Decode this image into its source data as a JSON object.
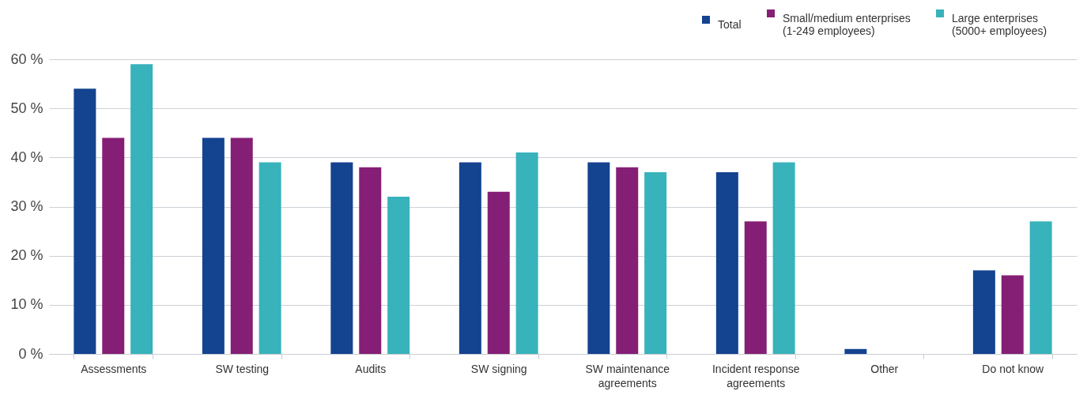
{
  "chart_data": {
    "type": "bar",
    "categories": [
      "Assessments",
      "SW testing",
      "Audits",
      "SW signing",
      "SW maintenance agreements",
      "Incident response agreements",
      "Other",
      "Do not know"
    ],
    "series": [
      {
        "name": "Total",
        "color": "#14438f",
        "values": [
          54,
          44,
          39,
          39,
          39,
          37,
          1,
          17
        ]
      },
      {
        "name": "Small/medium enterprises (1-249 employees)",
        "color": "#851f75",
        "values": [
          44,
          44,
          38,
          33,
          38,
          27,
          null,
          16
        ]
      },
      {
        "name": "Large enterprises (5000+ employees)",
        "color": "#38b2bb",
        "values": [
          59,
          39,
          32,
          41,
          37,
          39,
          null,
          27
        ]
      }
    ],
    "ylim": [
      0,
      60
    ],
    "yticks": [
      {
        "value": 0,
        "label": "0 %"
      },
      {
        "value": 10,
        "label": "10 %"
      },
      {
        "value": 20,
        "label": "20 %"
      },
      {
        "value": 30,
        "label": "30 %"
      },
      {
        "value": 40,
        "label": "40 %"
      },
      {
        "value": 50,
        "label": "50 %"
      },
      {
        "value": 60,
        "label": "60 %"
      }
    ],
    "grid": "y",
    "legend": "top right"
  }
}
